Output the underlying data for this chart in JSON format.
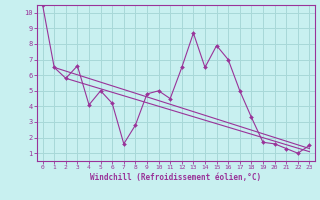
{
  "title": "",
  "xlabel": "Windchill (Refroidissement éolien,°C)",
  "ylabel": "",
  "bg_color": "#c8f0f0",
  "grid_color": "#a8d8d8",
  "line_color": "#993399",
  "spine_color": "#993399",
  "xlim": [
    -0.5,
    23.5
  ],
  "ylim": [
    0.5,
    10.5
  ],
  "xticks": [
    0,
    1,
    2,
    3,
    4,
    5,
    6,
    7,
    8,
    9,
    10,
    11,
    12,
    13,
    14,
    15,
    16,
    17,
    18,
    19,
    20,
    21,
    22,
    23
  ],
  "yticks": [
    1,
    2,
    3,
    4,
    5,
    6,
    7,
    8,
    9,
    10
  ],
  "data_line": {
    "x": [
      0,
      1,
      2,
      3,
      4,
      5,
      6,
      7,
      8,
      9,
      10,
      11,
      12,
      13,
      14,
      15,
      16,
      17,
      18,
      19,
      20,
      21,
      22,
      23
    ],
    "y": [
      10.5,
      6.5,
      5.8,
      6.6,
      4.1,
      5.0,
      4.2,
      1.6,
      2.8,
      4.8,
      5.0,
      4.5,
      6.5,
      8.7,
      6.5,
      7.9,
      7.0,
      5.0,
      3.3,
      1.7,
      1.6,
      1.3,
      1.0,
      1.5
    ]
  },
  "trend_line1": {
    "x": [
      1,
      23
    ],
    "y": [
      6.5,
      1.3
    ]
  },
  "trend_line2": {
    "x": [
      2,
      23
    ],
    "y": [
      5.8,
      1.1
    ]
  }
}
